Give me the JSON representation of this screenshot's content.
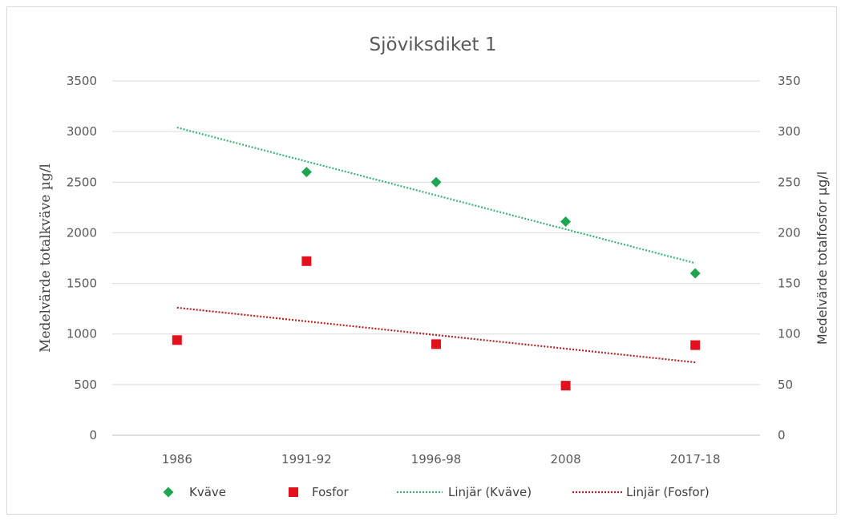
{
  "chart_data": {
    "type": "scatter",
    "title": "Sjöviksdiket 1",
    "categories": [
      "1986",
      "1991-92",
      "1996-98",
      "2008",
      "2017-18"
    ],
    "y_left": {
      "label": "Medelvärde totalkväve µg/l",
      "ylim": [
        0,
        3500
      ],
      "ticks": [
        0,
        500,
        1000,
        1500,
        2000,
        2500,
        3000,
        3500
      ]
    },
    "y_right": {
      "label": "Medelvärde totalfosfor µg/l",
      "ylim": [
        0,
        350
      ],
      "ticks": [
        0,
        50,
        100,
        150,
        200,
        250,
        300,
        350
      ]
    },
    "series": [
      {
        "name": "Kväve",
        "axis": "left",
        "marker": "diamond",
        "color": "#1fa450",
        "values": [
          null,
          2600,
          2500,
          2110,
          1600
        ]
      },
      {
        "name": "Fosfor",
        "axis": "right",
        "marker": "square",
        "color": "#e3101d",
        "values": [
          94,
          172,
          90,
          49,
          89
        ]
      }
    ],
    "trendlines": [
      {
        "name": "Linjär (Kväve)",
        "axis": "left",
        "color": "#3cb371",
        "style": "dotted",
        "start": 3040,
        "end": 1700
      },
      {
        "name": "Linjär (Fosfor)",
        "axis": "right",
        "color": "#b22222",
        "style": "dotted",
        "start": 126,
        "end": 72
      }
    ],
    "grid": true,
    "legend_position": "bottom"
  }
}
